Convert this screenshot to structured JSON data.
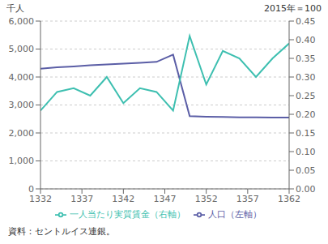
{
  "chart_data": {
    "type": "line",
    "ylabel": "千人",
    "y2label": "2015年＝100",
    "annotations": [
      "資料：セントルイス連銀。"
    ],
    "x": [
      1332,
      1334,
      1336,
      1338,
      1340,
      1342,
      1344,
      1346,
      1348,
      1350,
      1352,
      1354,
      1356,
      1358,
      1360,
      1362
    ],
    "series": [
      {
        "name": "人口（左軸）",
        "color": "#5b5ea6",
        "values": [
          4300,
          4350,
          4380,
          4420,
          4450,
          4480,
          4510,
          4540,
          4800,
          2600,
          2580,
          2570,
          2560,
          2560,
          2550,
          2550
        ]
      },
      {
        "name": "一人当たり実質賃金（右軸）",
        "color": "#3dbfb0",
        "axis": "y2",
        "values": [
          0.21,
          0.26,
          0.27,
          0.25,
          0.3,
          0.23,
          0.27,
          0.26,
          0.21,
          0.41,
          0.28,
          0.37,
          0.35,
          0.3,
          0.35,
          0.39
        ]
      }
    ],
    "xlim": [
      1332,
      1362
    ],
    "xticks": [
      1332,
      1337,
      1342,
      1347,
      1352,
      1357,
      1362
    ],
    "ylim": [
      0,
      6000
    ],
    "yticks": [
      0,
      {
        "value": 1000,
        "label": "1,000"
      },
      {
        "value": 2000,
        "label": "2,000"
      },
      {
        "value": 3000,
        "label": "3,000"
      },
      {
        "value": 4000,
        "label": "4,000"
      },
      {
        "value": 5000,
        "label": "5,000"
      },
      {
        "value": 6000,
        "label": "6,000"
      }
    ],
    "y2lim": [
      0,
      0.45
    ],
    "y2ticks": [
      {
        "value": 0,
        "label": "0.00"
      },
      0.05,
      {
        "value": 0.1,
        "label": "0.10"
      },
      0.15,
      {
        "value": 0.2,
        "label": "0.20"
      },
      0.25,
      {
        "value": 0.3,
        "label": "0.30"
      },
      0.35,
      {
        "value": 0.4,
        "label": "0.40"
      },
      0.45
    ],
    "grid": true,
    "legend": "bottom"
  }
}
